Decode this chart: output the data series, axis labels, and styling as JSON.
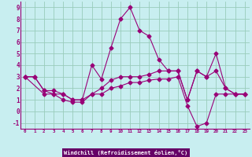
{
  "xlabel": "Windchill (Refroidissement éolien,°C)",
  "bg_color": "#c8eef0",
  "plot_bg": "#c8eef0",
  "line_color": "#990077",
  "grid_color": "#99ccbb",
  "xlabel_bg": "#660066",
  "xlabel_fg": "#ffffff",
  "xlim": [
    -0.5,
    23.5
  ],
  "ylim": [
    -1.5,
    9.5
  ],
  "xticks": [
    0,
    1,
    2,
    3,
    4,
    5,
    6,
    7,
    8,
    9,
    10,
    11,
    12,
    13,
    14,
    15,
    16,
    17,
    18,
    19,
    20,
    21,
    22,
    23
  ],
  "yticks": [
    -1,
    0,
    1,
    2,
    3,
    4,
    5,
    6,
    7,
    8,
    9
  ],
  "line1_x": [
    0,
    1,
    2,
    3,
    4,
    5,
    6,
    7,
    8,
    9,
    10,
    11,
    12,
    13,
    14,
    15,
    16,
    17,
    18,
    19,
    20,
    21,
    22,
    23
  ],
  "line1_y": [
    3,
    3,
    1.8,
    1.8,
    1.5,
    1.0,
    1.0,
    4.0,
    2.8,
    5.5,
    8.0,
    9.0,
    7.0,
    6.5,
    4.5,
    3.5,
    3.5,
    1.0,
    3.5,
    3.0,
    5.0,
    2.0,
    1.5,
    1.5
  ],
  "line2_x": [
    0,
    1,
    2,
    3,
    4,
    5,
    6,
    7,
    8,
    9,
    10,
    11,
    12,
    13,
    14,
    15,
    16,
    17,
    18,
    19,
    20,
    21,
    22,
    23
  ],
  "line2_y": [
    3,
    3,
    1.8,
    1.5,
    1.5,
    1.0,
    1.0,
    1.5,
    2.0,
    2.7,
    3.0,
    3.0,
    3.0,
    3.2,
    3.5,
    3.5,
    3.5,
    1.0,
    3.5,
    3.0,
    3.5,
    2.0,
    1.5,
    1.5
  ],
  "line3_x": [
    0,
    2,
    3,
    4,
    5,
    6,
    7,
    8,
    9,
    10,
    11,
    12,
    13,
    14,
    15,
    16,
    17,
    18,
    19,
    20,
    21,
    22,
    23
  ],
  "line3_y": [
    3,
    1.5,
    1.5,
    1.0,
    0.8,
    0.8,
    1.5,
    1.5,
    2.0,
    2.2,
    2.5,
    2.5,
    2.7,
    2.8,
    2.8,
    3.0,
    0.5,
    -1.3,
    -1.0,
    1.5,
    1.5,
    1.5,
    1.5
  ]
}
